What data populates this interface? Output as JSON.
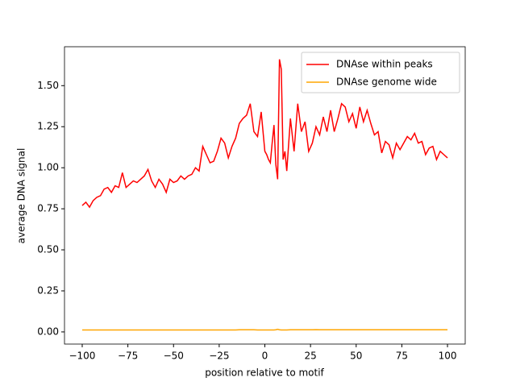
{
  "chart_data": {
    "type": "line",
    "xlabel": "position relative to motif",
    "ylabel": "average DNA signal",
    "x": [
      -100,
      -98,
      -96,
      -94,
      -92,
      -90,
      -88,
      -86,
      -84,
      -82,
      -80,
      -78,
      -76,
      -74,
      -72,
      -70,
      -68,
      -66,
      -64,
      -62,
      -60,
      -58,
      -56,
      -54,
      -52,
      -50,
      -48,
      -46,
      -44,
      -42,
      -40,
      -38,
      -36,
      -34,
      -32,
      -30,
      -28,
      -26,
      -24,
      -22,
      -20,
      -18,
      -16,
      -14,
      -12,
      -10,
      -8,
      -6,
      -4,
      -2,
      0,
      1,
      2,
      3,
      4,
      5,
      6,
      7,
      8,
      9,
      10,
      11,
      12,
      14,
      16,
      18,
      20,
      22,
      24,
      26,
      28,
      30,
      32,
      34,
      36,
      38,
      40,
      42,
      44,
      46,
      48,
      50,
      52,
      54,
      56,
      58,
      60,
      62,
      64,
      66,
      68,
      70,
      72,
      74,
      76,
      78,
      80,
      82,
      84,
      86,
      88,
      90,
      92,
      94,
      96,
      98,
      100
    ],
    "series": [
      {
        "name": "DNAse within peaks",
        "color": "#ff0000",
        "values": [
          0.77,
          0.79,
          0.76,
          0.8,
          0.82,
          0.83,
          0.87,
          0.88,
          0.85,
          0.89,
          0.88,
          0.97,
          0.88,
          0.9,
          0.92,
          0.91,
          0.93,
          0.95,
          0.99,
          0.92,
          0.88,
          0.93,
          0.9,
          0.85,
          0.93,
          0.91,
          0.92,
          0.95,
          0.93,
          0.95,
          0.96,
          1.0,
          0.98,
          1.13,
          1.08,
          1.03,
          1.04,
          1.1,
          1.18,
          1.15,
          1.06,
          1.13,
          1.18,
          1.27,
          1.3,
          1.32,
          1.39,
          1.22,
          1.19,
          1.34,
          1.1,
          1.08,
          1.05,
          1.03,
          1.15,
          1.26,
          1.02,
          0.93,
          1.66,
          1.6,
          1.05,
          1.1,
          0.98,
          1.3,
          1.1,
          1.39,
          1.22,
          1.28,
          1.1,
          1.15,
          1.25,
          1.2,
          1.31,
          1.22,
          1.35,
          1.22,
          1.3,
          1.39,
          1.37,
          1.28,
          1.33,
          1.24,
          1.37,
          1.28,
          1.35,
          1.27,
          1.2,
          1.22,
          1.09,
          1.16,
          1.14,
          1.06,
          1.15,
          1.11,
          1.15,
          1.19,
          1.17,
          1.21,
          1.15,
          1.16,
          1.08,
          1.12,
          1.13,
          1.05,
          1.1,
          1.08,
          1.06
        ]
      },
      {
        "name": "DNAse genome wide",
        "color": "#ffa500",
        "values": [
          0.012,
          0.012,
          0.012,
          0.012,
          0.012,
          0.012,
          0.012,
          0.012,
          0.012,
          0.012,
          0.012,
          0.012,
          0.012,
          0.012,
          0.012,
          0.012,
          0.012,
          0.012,
          0.012,
          0.012,
          0.012,
          0.012,
          0.012,
          0.012,
          0.012,
          0.012,
          0.012,
          0.012,
          0.012,
          0.012,
          0.012,
          0.012,
          0.012,
          0.012,
          0.012,
          0.012,
          0.012,
          0.012,
          0.012,
          0.012,
          0.012,
          0.012,
          0.012,
          0.013,
          0.013,
          0.013,
          0.013,
          0.013,
          0.012,
          0.012,
          0.012,
          0.012,
          0.012,
          0.012,
          0.012,
          0.012,
          0.013,
          0.016,
          0.013,
          0.012,
          0.012,
          0.012,
          0.012,
          0.013,
          0.013,
          0.013,
          0.013,
          0.013,
          0.013,
          0.013,
          0.014,
          0.013,
          0.013,
          0.013,
          0.013,
          0.013,
          0.013,
          0.013,
          0.013,
          0.013,
          0.013,
          0.013,
          0.013,
          0.013,
          0.013,
          0.013,
          0.013,
          0.013,
          0.013,
          0.013,
          0.013,
          0.013,
          0.013,
          0.013,
          0.013,
          0.013,
          0.013,
          0.013,
          0.013,
          0.013,
          0.013,
          0.013,
          0.013,
          0.013,
          0.013,
          0.013,
          0.013
        ]
      }
    ],
    "xlim": [
      -109.7,
      109.7
    ],
    "xticks": [
      {
        "value": -100,
        "label": "−100"
      },
      {
        "value": -75,
        "label": "−75"
      },
      {
        "value": -50,
        "label": "−50"
      },
      {
        "value": -25,
        "label": "−25"
      },
      0,
      25,
      50,
      75,
      100
    ],
    "ylim": [
      -0.074,
      1.737
    ],
    "yticks": [
      {
        "value": 0,
        "label": "0.00"
      },
      {
        "value": 0.25,
        "label": "0.25"
      },
      {
        "value": 0.5,
        "label": "0.50"
      },
      {
        "value": 0.75,
        "label": "0.75"
      },
      {
        "value": 1,
        "label": "1.00"
      },
      {
        "value": 1.25,
        "label": "1.25"
      },
      {
        "value": 1.5,
        "label": "1.50"
      }
    ],
    "legend": "upper right",
    "grid": false
  }
}
